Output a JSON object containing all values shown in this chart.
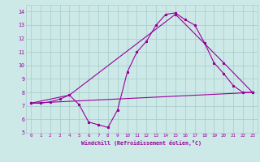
{
  "xlabel": "Windchill (Refroidissement éolien,°C)",
  "xlim": [
    -0.5,
    23.5
  ],
  "ylim": [
    5,
    14.5
  ],
  "xticks": [
    0,
    1,
    2,
    3,
    4,
    5,
    6,
    7,
    8,
    9,
    10,
    11,
    12,
    13,
    14,
    15,
    16,
    17,
    18,
    19,
    20,
    21,
    22,
    23
  ],
  "yticks": [
    5,
    6,
    7,
    8,
    9,
    10,
    11,
    12,
    13,
    14
  ],
  "bg_color": "#cce9e8",
  "grid_color": "#aacfce",
  "line_color": "#990099",
  "line1_x": [
    0,
    1,
    2,
    3,
    4,
    5,
    6,
    7,
    8,
    9,
    10,
    11,
    12,
    13,
    14,
    15,
    16,
    17,
    18,
    19,
    20,
    21,
    22,
    23
  ],
  "line1_y": [
    7.2,
    7.2,
    7.3,
    7.5,
    7.8,
    7.1,
    5.8,
    5.6,
    5.4,
    6.7,
    9.5,
    11.0,
    11.8,
    13.0,
    13.8,
    13.9,
    13.4,
    13.0,
    11.7,
    10.2,
    9.4,
    8.5,
    8.0,
    8.0
  ],
  "line2_x": [
    0,
    23
  ],
  "line2_y": [
    7.2,
    8.0
  ],
  "line3_x": [
    0,
    4,
    15,
    20,
    23
  ],
  "line3_y": [
    7.2,
    7.8,
    13.8,
    10.2,
    8.0
  ]
}
